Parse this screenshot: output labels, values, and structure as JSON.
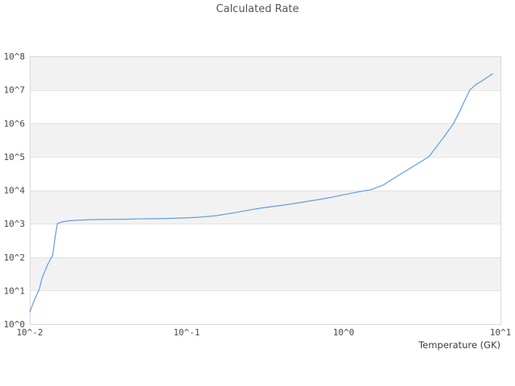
{
  "chart_data": {
    "type": "line",
    "title": "Calculated Rate",
    "xlabel": "Temperature (GK)",
    "ylabel": "",
    "x_scale": "log",
    "y_scale": "log",
    "xlim": [
      0.01,
      10
    ],
    "ylim": [
      1,
      100000000
    ],
    "grid": "horizontal",
    "legend": "none",
    "x_ticks": [
      {
        "label": "10^-2",
        "value": 0.01
      },
      {
        "label": "10^-1",
        "value": 0.1
      },
      {
        "label": "10^0",
        "value": 1
      },
      {
        "label": "10^1",
        "value": 10
      }
    ],
    "y_ticks": [
      {
        "label": "10^0",
        "value": 1
      },
      {
        "label": "10^1",
        "value": 10
      },
      {
        "label": "10^2",
        "value": 100
      },
      {
        "label": "10^3",
        "value": 1000
      },
      {
        "label": "10^4",
        "value": 10000
      },
      {
        "label": "10^5",
        "value": 100000
      },
      {
        "label": "10^6",
        "value": 1000000
      },
      {
        "label": "10^7",
        "value": 10000000
      },
      {
        "label": "10^8",
        "value": 100000000
      }
    ],
    "series": [
      {
        "name": "calculated-rate",
        "color": "#5f9ee8",
        "points": [
          [
            0.01,
            2.3
          ],
          [
            0.0105,
            4.2
          ],
          [
            0.011,
            7.0
          ],
          [
            0.0115,
            11
          ],
          [
            0.012,
            24
          ],
          [
            0.013,
            60
          ],
          [
            0.014,
            115
          ],
          [
            0.0145,
            400
          ],
          [
            0.015,
            1000
          ],
          [
            0.016,
            1130
          ],
          [
            0.018,
            1220
          ],
          [
            0.02,
            1270
          ],
          [
            0.025,
            1320
          ],
          [
            0.03,
            1340
          ],
          [
            0.04,
            1360
          ],
          [
            0.05,
            1390
          ],
          [
            0.06,
            1400
          ],
          [
            0.08,
            1440
          ],
          [
            0.1,
            1490
          ],
          [
            0.12,
            1560
          ],
          [
            0.15,
            1700
          ],
          [
            0.2,
            2100
          ],
          [
            0.25,
            2550
          ],
          [
            0.3,
            2950
          ],
          [
            0.4,
            3500
          ],
          [
            0.5,
            4100
          ],
          [
            0.6,
            4700
          ],
          [
            0.7,
            5300
          ],
          [
            0.85,
            6200
          ],
          [
            1.0,
            7300
          ],
          [
            1.2,
            8600
          ],
          [
            1.5,
            10400
          ],
          [
            1.8,
            14500
          ],
          [
            2.1,
            23000
          ],
          [
            2.5,
            38000
          ],
          [
            3.0,
            64000
          ],
          [
            3.5,
            100000
          ],
          [
            4.0,
            230000
          ],
          [
            4.5,
            480000
          ],
          [
            5.0,
            950000
          ],
          [
            5.5,
            2300000
          ],
          [
            6.0,
            5500000
          ],
          [
            6.4,
            10000000
          ],
          [
            7.0,
            14500000
          ],
          [
            7.5,
            17500000
          ],
          [
            8.0,
            21500000
          ],
          [
            8.5,
            26000000
          ],
          [
            8.9,
            30000000
          ]
        ]
      }
    ],
    "style": {
      "band_fill": "#f2f2f2",
      "grid_color": "#e3e3e3",
      "border_color": "#d9d9d9",
      "tick_text_color": "#4a4a4a",
      "title_color": "#555555",
      "axis_title_color": "#3c3c3c",
      "background": "#ffffff"
    }
  }
}
